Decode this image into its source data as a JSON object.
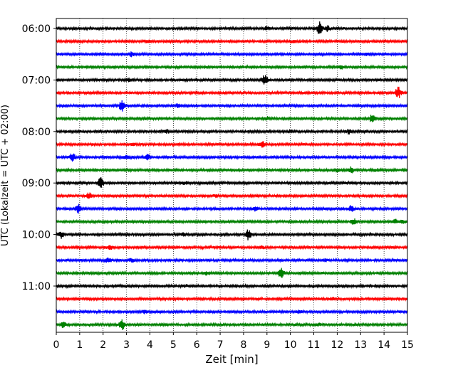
{
  "chart_data": {
    "type": "line",
    "title": "",
    "xlabel": "Zeit  [min]",
    "ylabel": "UTC (Lokalzeit = UTC + 02:00)",
    "xlim": [
      0,
      15
    ],
    "x_ticks": [
      0,
      1,
      2,
      3,
      4,
      5,
      6,
      7,
      8,
      9,
      10,
      11,
      12,
      13,
      14,
      15
    ],
    "y_tick_labels": [
      {
        "row": 0,
        "label": "06:00"
      },
      {
        "row": 4,
        "label": "07:00"
      },
      {
        "row": 8,
        "label": "08:00"
      },
      {
        "row": 12,
        "label": "09:00"
      },
      {
        "row": 16,
        "label": "10:00"
      },
      {
        "row": 20,
        "label": "11:00"
      }
    ],
    "grid": "vertical dotted",
    "trace_colors": [
      "#000000",
      "#ff0000",
      "#0000ff",
      "#008000"
    ],
    "traces": [
      {
        "row": 0,
        "events": [
          {
            "t": 11.25,
            "amp": 1.0
          },
          {
            "t": 11.6,
            "amp": 0.4
          },
          {
            "t": 9.0,
            "amp": 0.25
          }
        ]
      },
      {
        "row": 1,
        "events": [
          {
            "t": 3.9,
            "amp": 0.25
          },
          {
            "t": 10.1,
            "amp": 0.2
          }
        ]
      },
      {
        "row": 2,
        "events": [
          {
            "t": 3.2,
            "amp": 0.3
          },
          {
            "t": 13.3,
            "amp": 0.2
          }
        ]
      },
      {
        "row": 3,
        "events": [
          {
            "t": 12.2,
            "amp": 0.25
          }
        ]
      },
      {
        "row": 4,
        "events": [
          {
            "t": 8.9,
            "amp": 0.85
          },
          {
            "t": 3.1,
            "amp": 0.2
          }
        ]
      },
      {
        "row": 5,
        "events": [
          {
            "t": 14.6,
            "amp": 0.9
          }
        ]
      },
      {
        "row": 6,
        "events": [
          {
            "t": 2.8,
            "amp": 0.8
          },
          {
            "t": 5.2,
            "amp": 0.2
          }
        ]
      },
      {
        "row": 7,
        "events": [
          {
            "t": 13.5,
            "amp": 0.6
          },
          {
            "t": 9.0,
            "amp": 0.2
          }
        ]
      },
      {
        "row": 8,
        "events": [
          {
            "t": 12.5,
            "amp": 0.35
          },
          {
            "t": 4.7,
            "amp": 0.25
          },
          {
            "t": 10.0,
            "amp": 0.2
          }
        ]
      },
      {
        "row": 9,
        "events": [
          {
            "t": 8.8,
            "amp": 0.4
          },
          {
            "t": 3.3,
            "amp": 0.15
          }
        ]
      },
      {
        "row": 10,
        "events": [
          {
            "t": 0.7,
            "amp": 0.6
          },
          {
            "t": 3.0,
            "amp": 0.45
          },
          {
            "t": 3.9,
            "amp": 0.35
          }
        ]
      },
      {
        "row": 11,
        "events": [
          {
            "t": 12.6,
            "amp": 0.45
          },
          {
            "t": 12.0,
            "amp": 0.25
          },
          {
            "t": 13.7,
            "amp": 0.2
          }
        ]
      },
      {
        "row": 12,
        "events": [
          {
            "t": 1.9,
            "amp": 0.75
          },
          {
            "t": 5.5,
            "amp": 0.2
          },
          {
            "t": 12.3,
            "amp": 0.2
          }
        ]
      },
      {
        "row": 13,
        "events": [
          {
            "t": 1.4,
            "amp": 0.4
          },
          {
            "t": 6.8,
            "amp": 0.2
          }
        ]
      },
      {
        "row": 14,
        "events": [
          {
            "t": 0.95,
            "amp": 0.65
          },
          {
            "t": 8.5,
            "amp": 0.35
          },
          {
            "t": 12.6,
            "amp": 0.45
          }
        ]
      },
      {
        "row": 15,
        "events": [
          {
            "t": 12.7,
            "amp": 0.4
          },
          {
            "t": 14.5,
            "amp": 0.35
          },
          {
            "t": 14.8,
            "amp": 0.3
          }
        ]
      },
      {
        "row": 16,
        "events": [
          {
            "t": 8.2,
            "amp": 0.85
          },
          {
            "t": 0.2,
            "amp": 0.5
          },
          {
            "t": 5.4,
            "amp": 0.2
          }
        ]
      },
      {
        "row": 17,
        "events": [
          {
            "t": 2.3,
            "amp": 0.25
          },
          {
            "t": 8.8,
            "amp": 0.2
          }
        ]
      },
      {
        "row": 18,
        "events": [
          {
            "t": 2.2,
            "amp": 0.3
          },
          {
            "t": 3.2,
            "amp": 0.3
          },
          {
            "t": 11.5,
            "amp": 0.15
          }
        ]
      },
      {
        "row": 19,
        "events": [
          {
            "t": 9.6,
            "amp": 0.7
          },
          {
            "t": 6.4,
            "amp": 0.25
          }
        ]
      },
      {
        "row": 20,
        "events": [
          {
            "t": 5.5,
            "amp": 0.15
          }
        ]
      },
      {
        "row": 21,
        "events": [
          {
            "t": 11.8,
            "amp": 0.15
          }
        ]
      },
      {
        "row": 22,
        "events": [
          {
            "t": 3.8,
            "amp": 0.2
          },
          {
            "t": 10.4,
            "amp": 0.2
          }
        ]
      },
      {
        "row": 23,
        "events": [
          {
            "t": 2.8,
            "amp": 0.75
          },
          {
            "t": 0.3,
            "amp": 0.4
          },
          {
            "t": 11.2,
            "amp": 0.2
          }
        ]
      }
    ]
  }
}
